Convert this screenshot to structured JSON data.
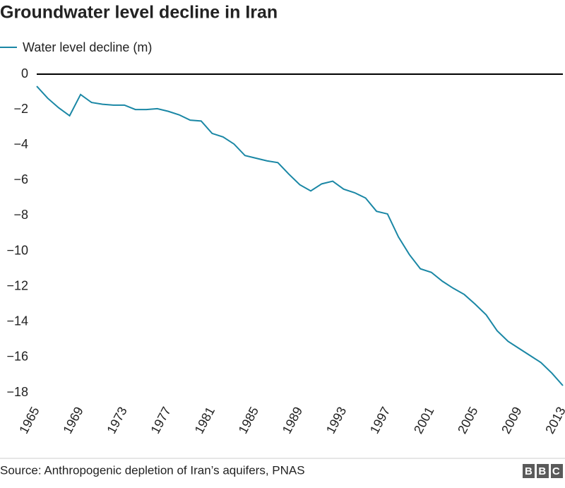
{
  "chart_data": {
    "type": "line",
    "title": "Groundwater level decline in Iran",
    "source": "Source: Anthropogenic depletion of Iran’s aquifers, PNAS",
    "logo": "BBC",
    "x": [
      1965,
      1966,
      1967,
      1968,
      1969,
      1970,
      1971,
      1972,
      1973,
      1974,
      1975,
      1976,
      1977,
      1978,
      1979,
      1980,
      1981,
      1982,
      1983,
      1984,
      1985,
      1986,
      1987,
      1988,
      1989,
      1990,
      1991,
      1992,
      1993,
      1994,
      1995,
      1996,
      1997,
      1998,
      1999,
      2000,
      2001,
      2002,
      2003,
      2004,
      2005,
      2006,
      2007,
      2008,
      2009,
      2010,
      2011,
      2012,
      2013
    ],
    "series": [
      {
        "name": "Water level decline (m)",
        "color": "#1a87a5",
        "values": [
          -0.68,
          -1.36,
          -1.9,
          -2.35,
          -1.15,
          -1.6,
          -1.7,
          -1.75,
          -1.75,
          -2.0,
          -2.0,
          -1.95,
          -2.1,
          -2.3,
          -2.6,
          -2.65,
          -3.35,
          -3.55,
          -3.95,
          -4.6,
          -4.75,
          -4.9,
          -5.0,
          -5.65,
          -6.25,
          -6.6,
          -6.2,
          -6.05,
          -6.5,
          -6.7,
          -7.0,
          -7.75,
          -7.9,
          -9.2,
          -10.2,
          -11.0,
          -11.2,
          -11.7,
          -12.1,
          -12.45,
          -13.0,
          -13.6,
          -14.5,
          -15.1,
          -15.5,
          -15.9,
          -16.3,
          -16.9,
          -17.6
        ]
      }
    ],
    "xlim": [
      1965,
      2013
    ],
    "xticks": [
      1965,
      1969,
      1973,
      1977,
      1981,
      1985,
      1989,
      1993,
      1997,
      2001,
      2005,
      2009,
      2013
    ],
    "ylim": [
      -18,
      0
    ],
    "yticks": [
      0,
      {
        "value": -2,
        "label": "−2"
      },
      {
        "value": -4,
        "label": "−4"
      },
      {
        "value": -6,
        "label": "−6"
      },
      {
        "value": -8,
        "label": "−8"
      },
      {
        "value": -10,
        "label": "−10"
      },
      {
        "value": -12,
        "label": "−12"
      },
      {
        "value": -14,
        "label": "−14"
      },
      {
        "value": -16,
        "label": "−16"
      },
      {
        "value": -18,
        "label": "−18"
      }
    ],
    "zero_line": true
  }
}
